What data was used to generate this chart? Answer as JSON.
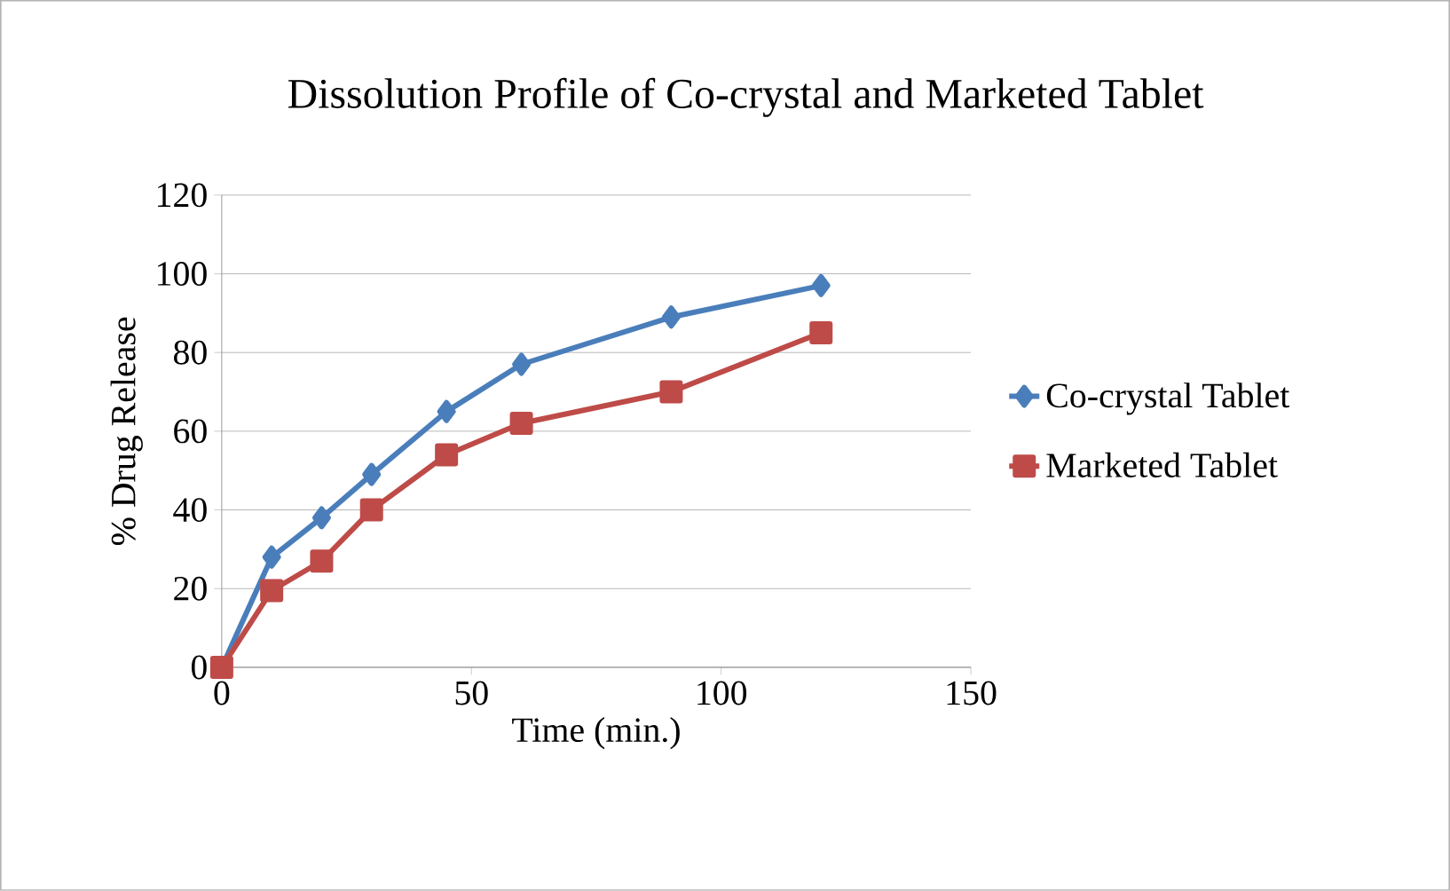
{
  "chart_data": {
    "type": "line",
    "title": "Dissolution  Profile of Co-crystal and Marketed Tablet",
    "xlabel": "Time (min.)",
    "ylabel": "% Drug Release",
    "x": [
      0,
      10,
      20,
      30,
      45,
      60,
      90,
      120
    ],
    "series": [
      {
        "name": "Co-crystal Tablet",
        "color": "#4a7ebb",
        "marker": "diamond",
        "values": [
          0,
          28,
          38,
          49,
          65,
          77,
          89,
          97
        ]
      },
      {
        "name": "Marketed Tablet",
        "color": "#be4b48",
        "marker": "square",
        "values": [
          0,
          19.5,
          27,
          40,
          54,
          62,
          70,
          85
        ]
      }
    ],
    "xlim": [
      0,
      150
    ],
    "xticks": [
      0,
      50,
      100,
      150
    ],
    "ylim": [
      0,
      120
    ],
    "yticks": [
      0,
      20,
      40,
      60,
      80,
      100,
      120
    ],
    "grid": "y",
    "legend": "right",
    "line_style": "solid"
  }
}
